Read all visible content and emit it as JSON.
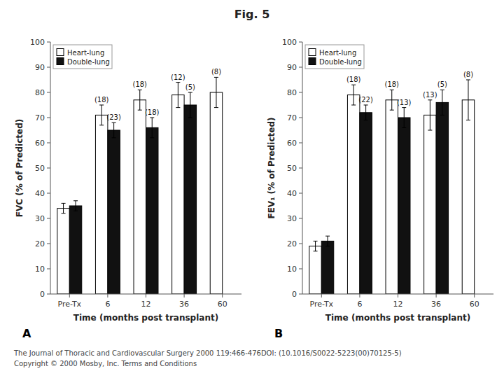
{
  "title": "Fig. 5",
  "annotations": [
    "The Journal of Thoracic and Cardiovascular Surgery 2000 119:466-476DOI: (10.1016/S0022-5223(00)70125-5)",
    "Copyright © 2000 Mosby, Inc. Terms and Conditions"
  ],
  "chart_data": [
    {
      "type": "bar",
      "title": "A",
      "xlabel": "Time (months post transplant)",
      "ylabel": "FVC (% of Predicted)",
      "categories": [
        "Pre-Tx",
        "6",
        "12",
        "36",
        "60"
      ],
      "series": [
        {
          "name": "Heart-lung",
          "color": "#ffffff",
          "values": [
            34,
            71,
            77,
            79,
            80
          ],
          "errors": [
            2,
            4,
            4,
            5,
            6
          ],
          "annotations": [
            null,
            "(18)",
            "(18)",
            "(12)",
            "(8)"
          ]
        },
        {
          "name": "Double-lung",
          "color": "#111111",
          "values": [
            35,
            65,
            66,
            75,
            null
          ],
          "errors": [
            2,
            3,
            4,
            5,
            null
          ],
          "annotations": [
            null,
            "(23)",
            "(18)",
            "(5)",
            null
          ]
        }
      ],
      "ylim": [
        0,
        100
      ],
      "yticks": [
        0,
        10,
        20,
        30,
        40,
        50,
        60,
        70,
        80,
        90,
        100
      ],
      "grid": false,
      "legend": "upper left"
    },
    {
      "type": "bar",
      "title": "B",
      "xlabel": "Time (months post transplant)",
      "ylabel": "FEV₁ (% of Predicted)",
      "categories": [
        "Pre-Tx",
        "6",
        "12",
        "36",
        "60"
      ],
      "series": [
        {
          "name": "Heart-lung",
          "color": "#ffffff",
          "values": [
            19,
            79,
            77,
            71,
            77
          ],
          "errors": [
            2,
            4,
            4,
            6,
            8
          ],
          "annotations": [
            null,
            "(18)",
            "(18)",
            "(13)",
            "(8)"
          ]
        },
        {
          "name": "Double-lung",
          "color": "#111111",
          "values": [
            21,
            72,
            70,
            76,
            null
          ],
          "errors": [
            2,
            3,
            4,
            5,
            null
          ],
          "annotations": [
            null,
            "(22)",
            "(13)",
            "(5)",
            null
          ]
        }
      ],
      "ylim": [
        0,
        100
      ],
      "yticks": [
        0,
        10,
        20,
        30,
        40,
        50,
        60,
        70,
        80,
        90,
        100
      ],
      "grid": false,
      "legend": "upper left"
    }
  ]
}
